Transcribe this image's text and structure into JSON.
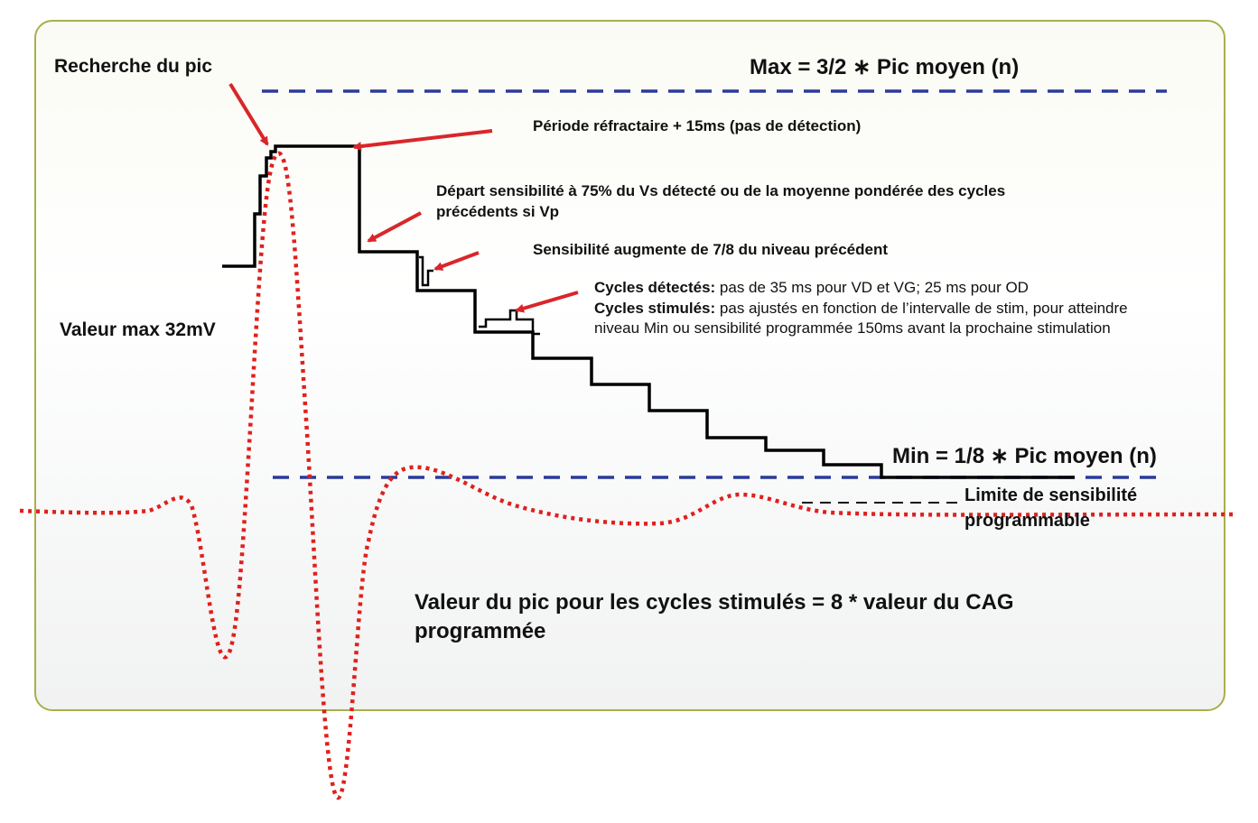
{
  "labels": {
    "recherche": "Recherche du pic",
    "max_formula": "Max = 3/2 ∗ Pic moyen (n)",
    "refractaire": "Période réfractaire + 15ms (pas de détection)",
    "depart_line1": "Départ sensibilité à  75%  du Vs détecté ou de la moyenne pondérée des cycles",
    "depart_line2": "précédents si Vp",
    "sensibilite_augmente": "Sensibilité  augmente de 7/8 du niveau précédent",
    "cycles_detectes_label": "Cycles détectés:",
    "cycles_detectes_text": " pas de 35 ms pour VD et VG; 25 ms pour OD",
    "cycles_stimules_label": "Cycles stimulés:",
    "cycles_stimules_text": " pas ajustés en fonction de l’intervalle de stim, pour atteindre",
    "cycles_stimules_line2": "niveau Min ou sensibilité programmée 150ms avant la prochaine stimulation",
    "valeur_max": "Valeur max 32mV",
    "min_formula": "Min = 1/8 ∗ Pic moyen (n)",
    "limite_line1": "Limite de sensibilité",
    "limite_line2": "programmable",
    "pic_line1": "Valeur du pic pour les cycles stimulés = 8 * valeur du CAG",
    "pic_line2": "programmée"
  },
  "colors": {
    "frame_border": "#a8b04a",
    "threshold_line": "#000000",
    "signal": "#e0201c",
    "arrow": "#d9262a",
    "limit_dashes": "#2b3a9a"
  }
}
